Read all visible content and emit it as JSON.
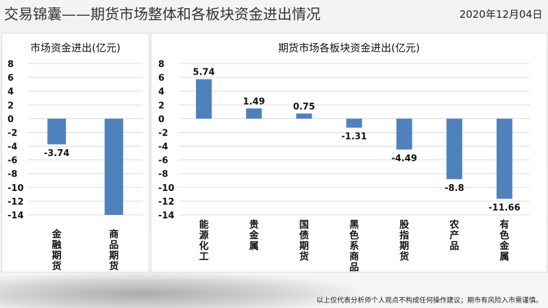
{
  "header": {
    "title": "交易锦囊——期货市场整体和各板块资金进出情况",
    "date": "2020年12月04日"
  },
  "footer": {
    "disclaimer": "以上仅代表分析师个人观点不构成任何操作建议；期市有风险入市需谨慎。"
  },
  "chart_data": [
    {
      "type": "bar",
      "title": "市场资金进出(亿元)",
      "categories": [
        "金融期货",
        "商品期货"
      ],
      "values": [
        -3.74,
        -14.54
      ],
      "labels": [
        "-3.74",
        ""
      ],
      "ylim": [
        -14,
        8
      ],
      "yticks": [
        8,
        6,
        4,
        2,
        0,
        -2,
        -4,
        -6,
        -8,
        -10,
        -12,
        -14
      ],
      "grid": true,
      "color": "#4f81bd"
    },
    {
      "type": "bar",
      "title": "期货市场各板块资金进出(亿元)",
      "categories": [
        "能源化工",
        "贵金属",
        "国债期货",
        "黑色系商品",
        "股指期货",
        "农产品",
        "有色金属"
      ],
      "values": [
        5.74,
        1.49,
        0.75,
        -1.31,
        -4.49,
        -8.8,
        -11.66
      ],
      "labels": [
        "5.74",
        "1.49",
        "0.75",
        "-1.31",
        "-4.49",
        "-8.8",
        "-11.66"
      ],
      "ylim": [
        -14,
        8
      ],
      "yticks": [
        8,
        6,
        4,
        2,
        0,
        -2,
        -4,
        -6,
        -8,
        -10,
        -12,
        -14
      ],
      "grid": true,
      "color": "#4f81bd"
    }
  ]
}
